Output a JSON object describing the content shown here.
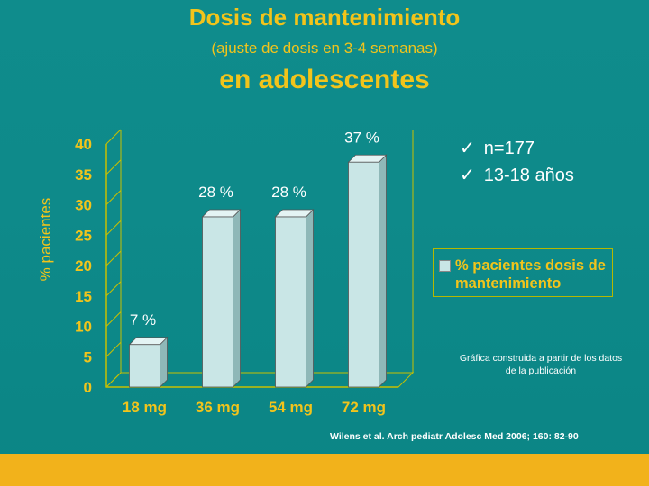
{
  "slide": {
    "title": "Dosis de mantenimiento",
    "subtitle": "(ajuste de dosis en 3-4 semanas)",
    "title2": "en adolescentes",
    "bullets": [
      {
        "check": "✓",
        "text": "n=177"
      },
      {
        "check": "✓",
        "text": "13-18 años"
      }
    ],
    "note": "Gráfica construida a partir de los datos de la publicación",
    "reference": "Wilens et al.  Arch pediatr Adolesc Med 2006; 160: 82-90"
  },
  "colors": {
    "background": "#0e8a8a",
    "accent": "#f2c41b",
    "bar": "#c9e6e6",
    "footer": "#f2b21b"
  },
  "chart_data": {
    "type": "bar",
    "categories": [
      "18 mg",
      "36 mg",
      "54 mg",
      "72 mg"
    ],
    "values": [
      7,
      28,
      28,
      37
    ],
    "data_labels": [
      "7 %",
      "28 %",
      "28 %",
      "37 %"
    ],
    "ylabel": "% pacientes",
    "ylim": [
      0,
      40
    ],
    "yticks": [
      0,
      5,
      10,
      15,
      20,
      25,
      30,
      35,
      40
    ],
    "legend": "% pacientes dosis de mantenimiento",
    "legend_position": "right"
  }
}
